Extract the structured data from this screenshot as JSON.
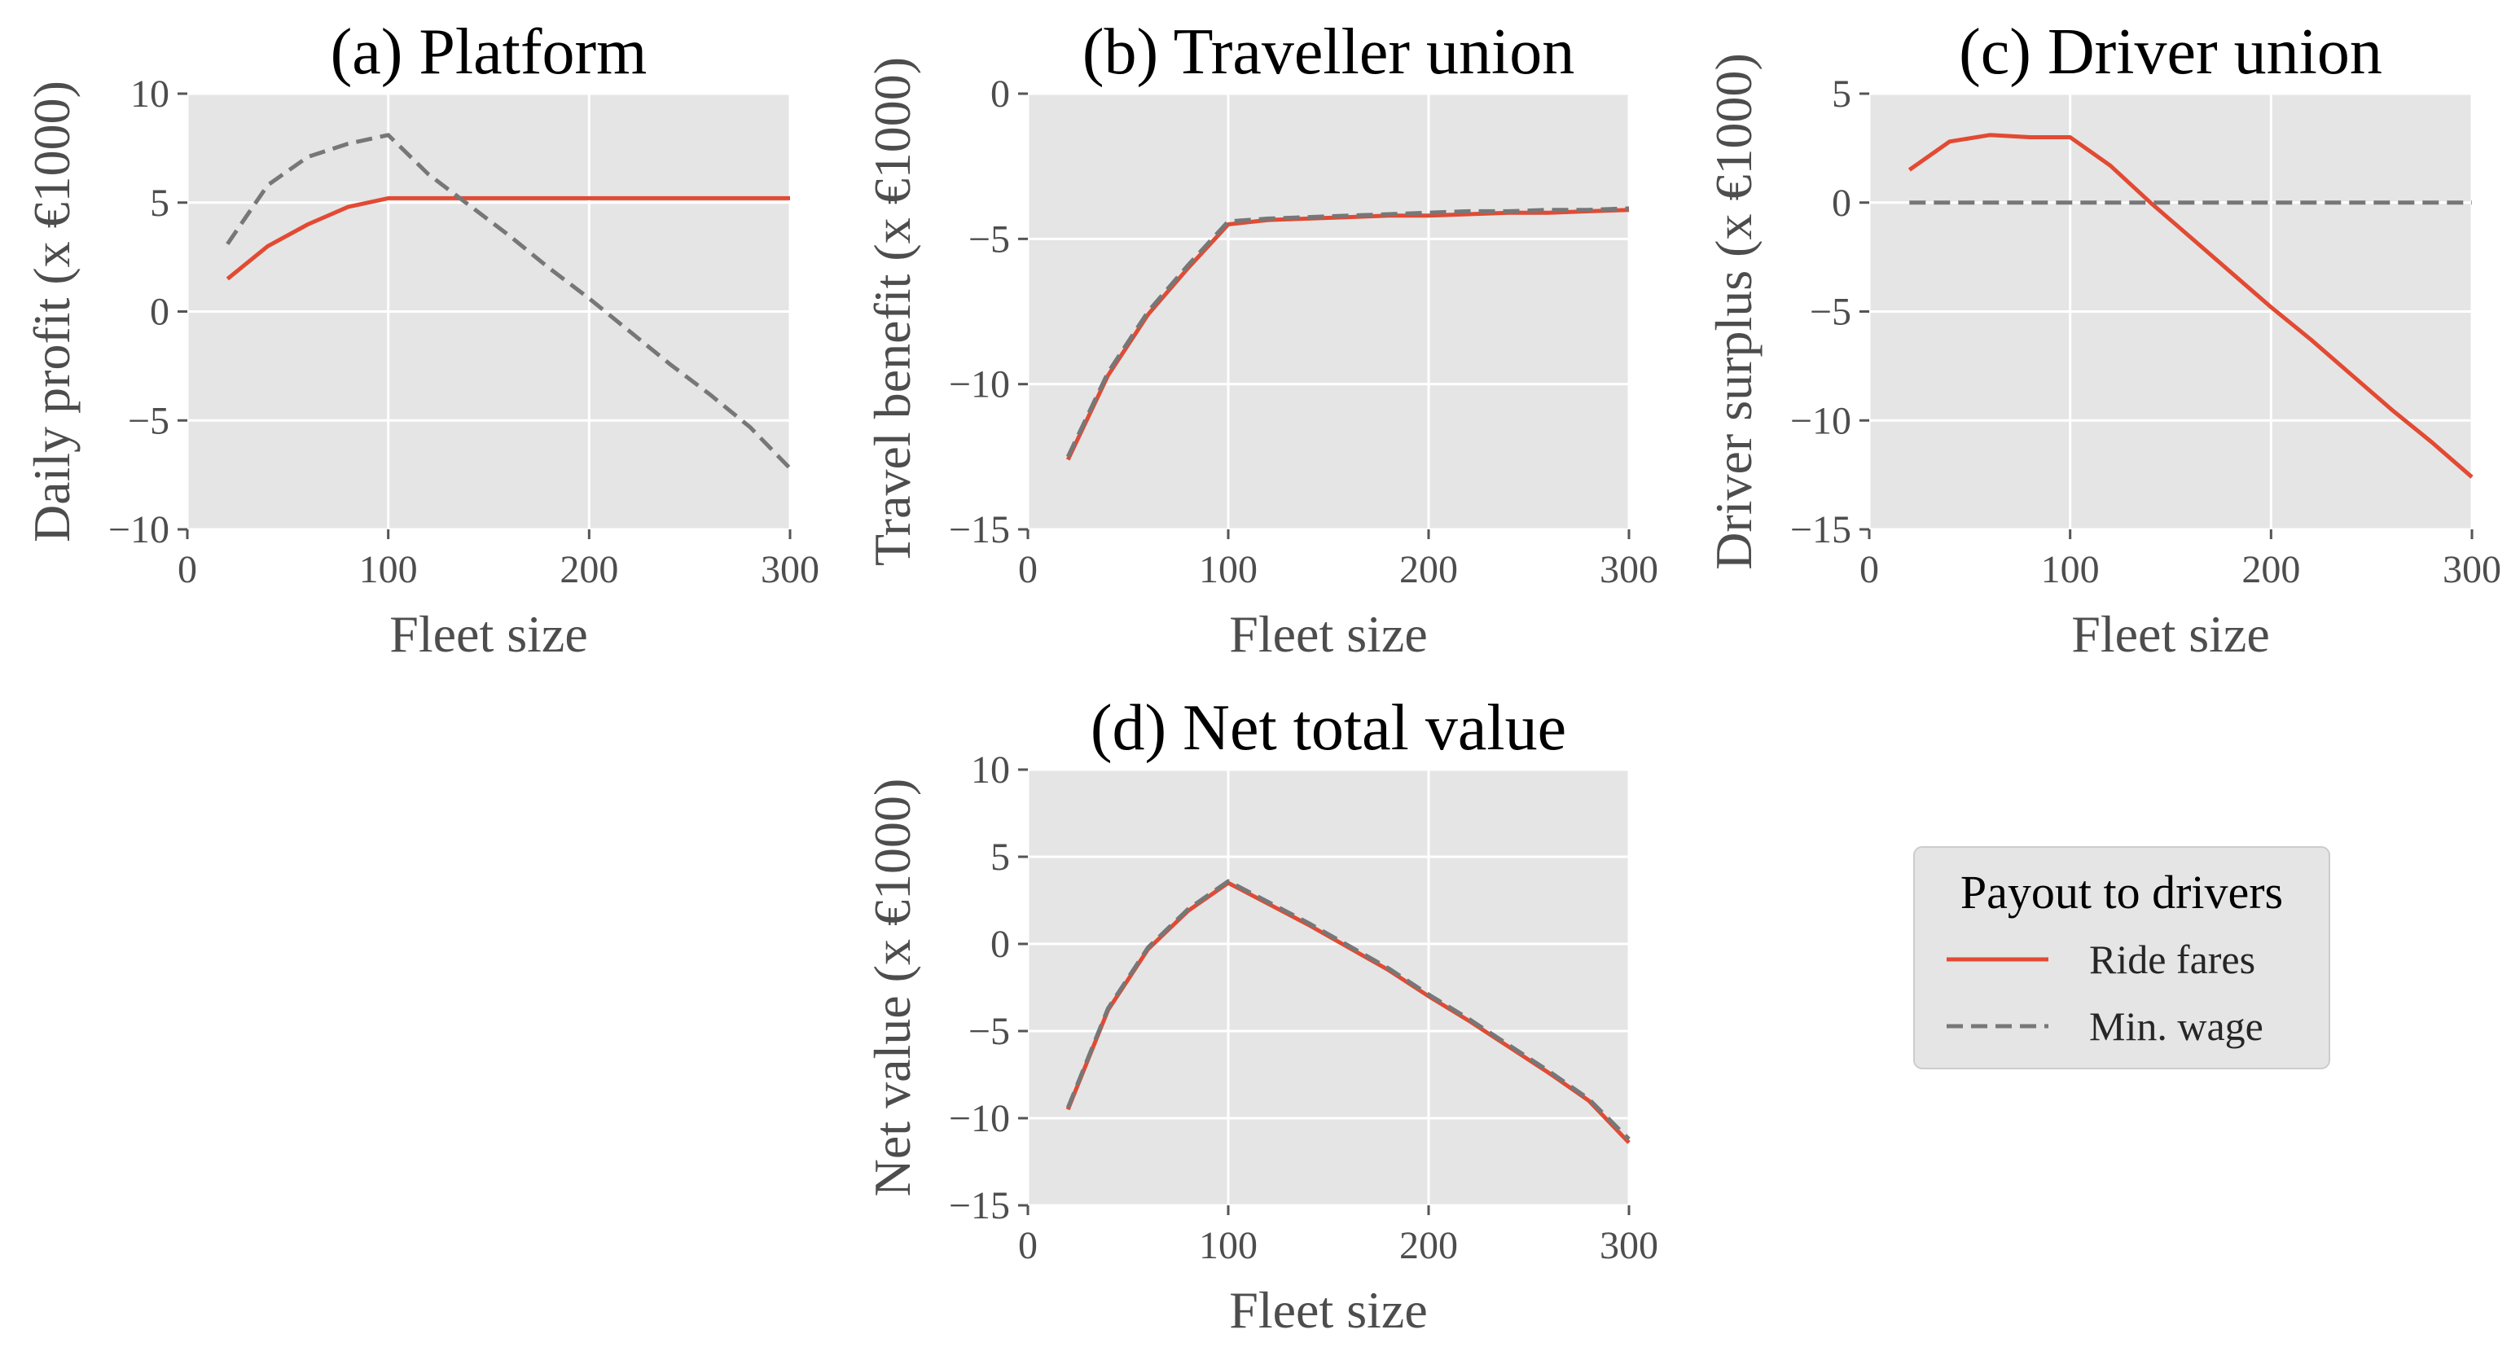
{
  "figure": {
    "legend": {
      "title": "Payout to drivers",
      "entries": [
        {
          "label": "Ride fares",
          "color": "#E24A33",
          "style": "solid"
        },
        {
          "label": "Min. wage",
          "color": "#777777",
          "style": "dashed"
        }
      ],
      "placement": "lower-right"
    }
  },
  "chart_data": [
    {
      "id": "a",
      "type": "line",
      "title": "(a) Platform",
      "xlabel": "Fleet size",
      "ylabel": "Daily profit (x €1000)",
      "xlim": [
        0,
        300
      ],
      "ylim": [
        -10,
        10
      ],
      "xticks": [
        0,
        100,
        200,
        300
      ],
      "yticks": [
        -10,
        -5,
        0,
        5,
        10
      ],
      "grid": true,
      "series": [
        {
          "name": "Ride fares",
          "x": [
            20,
            40,
            60,
            80,
            100,
            120,
            140,
            160,
            180,
            200,
            220,
            240,
            260,
            280,
            300
          ],
          "y": [
            1.5,
            3.0,
            4.0,
            4.8,
            5.2,
            5.2,
            5.2,
            5.2,
            5.2,
            5.2,
            5.2,
            5.2,
            5.2,
            5.2,
            5.2
          ]
        },
        {
          "name": "Min. wage",
          "x": [
            20,
            40,
            60,
            80,
            100,
            120,
            140,
            160,
            180,
            200,
            220,
            240,
            260,
            280,
            300
          ],
          "y": [
            3.1,
            5.8,
            7.1,
            7.7,
            8.1,
            6.3,
            4.9,
            3.5,
            2.0,
            0.6,
            -0.9,
            -2.4,
            -3.8,
            -5.3,
            -7.2
          ]
        }
      ]
    },
    {
      "id": "b",
      "type": "line",
      "title": "(b) Traveller union",
      "xlabel": "Fleet size",
      "ylabel": "Travel benefit (x €1000)",
      "xlim": [
        0,
        300
      ],
      "ylim": [
        -15,
        0
      ],
      "xticks": [
        0,
        100,
        200,
        300
      ],
      "yticks": [
        -15,
        -10,
        -5,
        0
      ],
      "grid": true,
      "series": [
        {
          "name": "Ride fares",
          "x": [
            20,
            40,
            60,
            80,
            100,
            120,
            140,
            160,
            180,
            200,
            220,
            240,
            260,
            280,
            300
          ],
          "y": [
            -12.6,
            -9.7,
            -7.6,
            -6.0,
            -4.5,
            -4.35,
            -4.3,
            -4.25,
            -4.2,
            -4.2,
            -4.15,
            -4.1,
            -4.1,
            -4.05,
            -4.0
          ]
        },
        {
          "name": "Min. wage",
          "x": [
            20,
            40,
            60,
            80,
            100,
            120,
            140,
            160,
            180,
            200,
            220,
            240,
            260,
            280,
            300
          ],
          "y": [
            -12.5,
            -9.6,
            -7.5,
            -5.9,
            -4.4,
            -4.3,
            -4.25,
            -4.2,
            -4.15,
            -4.1,
            -4.05,
            -4.05,
            -4.0,
            -4.0,
            -3.95
          ]
        }
      ]
    },
    {
      "id": "c",
      "type": "line",
      "title": "(c) Driver union",
      "xlabel": "Fleet size",
      "ylabel": "Driver surplus (x €1000)",
      "xlim": [
        0,
        300
      ],
      "ylim": [
        -15,
        5
      ],
      "xticks": [
        0,
        100,
        200,
        300
      ],
      "yticks": [
        -15,
        -10,
        -5,
        0,
        5
      ],
      "grid": true,
      "series": [
        {
          "name": "Ride fares",
          "x": [
            20,
            40,
            60,
            80,
            100,
            120,
            140,
            160,
            180,
            200,
            220,
            240,
            260,
            280,
            300
          ],
          "y": [
            1.5,
            2.8,
            3.1,
            3.0,
            3.0,
            1.7,
            0.0,
            -1.6,
            -3.2,
            -4.8,
            -6.3,
            -7.9,
            -9.5,
            -11.0,
            -12.6
          ]
        },
        {
          "name": "Min. wage",
          "x": [
            20,
            300
          ],
          "y": [
            0,
            0
          ]
        }
      ]
    },
    {
      "id": "d",
      "type": "line",
      "title": "(d) Net total value",
      "xlabel": "Fleet size",
      "ylabel": "Net value (x €1000)",
      "xlim": [
        0,
        300
      ],
      "ylim": [
        -15,
        10
      ],
      "xticks": [
        0,
        100,
        200,
        300
      ],
      "yticks": [
        -15,
        -10,
        -5,
        0,
        5,
        10
      ],
      "grid": true,
      "series": [
        {
          "name": "Ride fares",
          "x": [
            20,
            40,
            60,
            80,
            100,
            120,
            140,
            160,
            180,
            200,
            220,
            240,
            260,
            280,
            300
          ],
          "y": [
            -9.5,
            -3.8,
            -0.3,
            1.9,
            3.5,
            2.3,
            1.1,
            -0.2,
            -1.5,
            -3.0,
            -4.4,
            -5.9,
            -7.4,
            -9.0,
            -11.4
          ]
        },
        {
          "name": "Min. wage",
          "x": [
            20,
            40,
            60,
            80,
            100,
            120,
            140,
            160,
            180,
            200,
            220,
            240,
            260,
            280,
            300
          ],
          "y": [
            -9.4,
            -3.7,
            -0.2,
            2.0,
            3.6,
            2.4,
            1.2,
            -0.1,
            -1.4,
            -2.9,
            -4.3,
            -5.8,
            -7.3,
            -8.9,
            -11.2
          ]
        }
      ]
    }
  ]
}
